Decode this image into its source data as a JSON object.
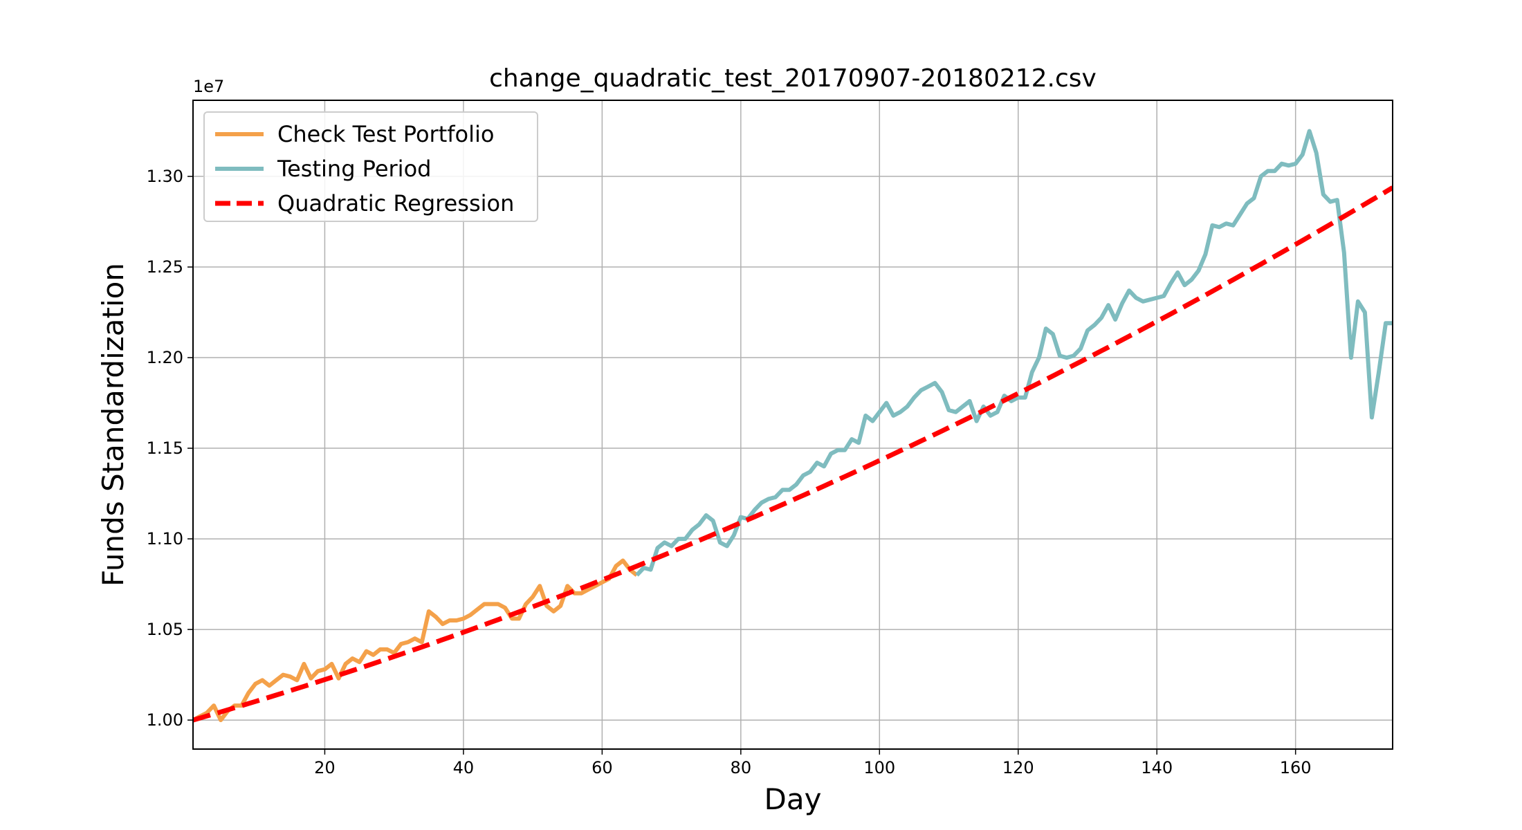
{
  "chart_data": {
    "type": "line",
    "title": "change_quadratic_test_20170907-20180212.csv",
    "xlabel": "Day",
    "ylabel": "Funds Standardization",
    "y_offset_label": "1e7",
    "xlim": [
      1,
      174
    ],
    "ylim": [
      0.984,
      1.342
    ],
    "xticks": [
      20,
      40,
      60,
      80,
      100,
      120,
      140,
      160
    ],
    "xtick_labels": [
      "20",
      "40",
      "60",
      "80",
      "100",
      "120",
      "140",
      "160"
    ],
    "yticks": [
      1.0,
      1.05,
      1.1,
      1.15,
      1.2,
      1.25,
      1.3
    ],
    "ytick_labels": [
      "1.00",
      "1.05",
      "1.10",
      "1.15",
      "1.20",
      "1.25",
      "1.30"
    ],
    "grid": true,
    "legend_position": "upper-left",
    "series": [
      {
        "name": "Check Test Portfolio",
        "color": "#f4a14a",
        "style": "solid",
        "x": [
          1,
          2,
          3,
          4,
          5,
          6,
          7,
          8,
          9,
          10,
          11,
          12,
          13,
          14,
          15,
          16,
          17,
          18,
          19,
          20,
          21,
          22,
          23,
          24,
          25,
          26,
          27,
          28,
          29,
          30,
          31,
          32,
          33,
          34,
          35,
          36,
          37,
          38,
          39,
          40,
          41,
          42,
          43,
          44,
          45,
          46,
          47,
          48,
          49,
          50,
          51,
          52,
          53,
          54,
          55,
          56,
          57,
          58,
          59,
          60,
          61,
          62,
          63,
          64,
          65
        ],
        "values": [
          1.0,
          1.002,
          1.004,
          1.008,
          1.0,
          1.005,
          1.008,
          1.008,
          1.015,
          1.02,
          1.022,
          1.019,
          1.022,
          1.025,
          1.024,
          1.022,
          1.031,
          1.023,
          1.027,
          1.028,
          1.031,
          1.023,
          1.031,
          1.034,
          1.032,
          1.038,
          1.036,
          1.039,
          1.039,
          1.037,
          1.042,
          1.043,
          1.045,
          1.043,
          1.06,
          1.057,
          1.053,
          1.055,
          1.055,
          1.056,
          1.058,
          1.061,
          1.064,
          1.064,
          1.064,
          1.062,
          1.056,
          1.056,
          1.064,
          1.068,
          1.074,
          1.063,
          1.06,
          1.063,
          1.074,
          1.07,
          1.07,
          1.072,
          1.074,
          1.076,
          1.078,
          1.085,
          1.088,
          1.083,
          1.08
        ]
      },
      {
        "name": "Testing Period",
        "color": "#7fbcbf",
        "style": "solid",
        "x": [
          65,
          66,
          67,
          68,
          69,
          70,
          71,
          72,
          73,
          74,
          75,
          76,
          77,
          78,
          79,
          80,
          81,
          82,
          83,
          84,
          85,
          86,
          87,
          88,
          89,
          90,
          91,
          92,
          93,
          94,
          95,
          96,
          97,
          98,
          99,
          100,
          101,
          102,
          103,
          104,
          105,
          106,
          107,
          108,
          109,
          110,
          111,
          112,
          113,
          114,
          115,
          116,
          117,
          118,
          119,
          120,
          121,
          122,
          123,
          124,
          125,
          126,
          127,
          128,
          129,
          130,
          131,
          132,
          133,
          134,
          135,
          136,
          137,
          138,
          139,
          140,
          141,
          142,
          143,
          144,
          145,
          146,
          147,
          148,
          149,
          150,
          151,
          152,
          153,
          154,
          155,
          156,
          157,
          158,
          159,
          160,
          161,
          162,
          163,
          164,
          165,
          166,
          167,
          168,
          169,
          170,
          171,
          172,
          173,
          174
        ],
        "values": [
          1.08,
          1.084,
          1.083,
          1.095,
          1.098,
          1.096,
          1.1,
          1.1,
          1.105,
          1.108,
          1.113,
          1.11,
          1.098,
          1.096,
          1.102,
          1.112,
          1.111,
          1.116,
          1.12,
          1.122,
          1.123,
          1.127,
          1.127,
          1.13,
          1.135,
          1.137,
          1.142,
          1.14,
          1.147,
          1.149,
          1.149,
          1.155,
          1.153,
          1.168,
          1.165,
          1.17,
          1.175,
          1.168,
          1.17,
          1.173,
          1.178,
          1.182,
          1.184,
          1.186,
          1.181,
          1.171,
          1.17,
          1.173,
          1.176,
          1.165,
          1.173,
          1.168,
          1.17,
          1.179,
          1.176,
          1.178,
          1.178,
          1.192,
          1.2,
          1.216,
          1.213,
          1.201,
          1.2,
          1.201,
          1.205,
          1.215,
          1.218,
          1.222,
          1.229,
          1.221,
          1.23,
          1.237,
          1.233,
          1.231,
          1.232,
          1.233,
          1.234,
          1.241,
          1.247,
          1.24,
          1.243,
          1.248,
          1.257,
          1.273,
          1.272,
          1.274,
          1.273,
          1.279,
          1.285,
          1.288,
          1.3,
          1.303,
          1.303,
          1.307,
          1.306,
          1.307,
          1.312,
          1.325,
          1.313,
          1.29,
          1.286,
          1.287,
          1.258,
          1.2,
          1.231,
          1.225,
          1.167,
          1.192,
          1.219,
          1.219
        ]
      },
      {
        "name": "Quadratic Regression",
        "color": "#ff0000",
        "style": "dashed",
        "formula": "y = 1.0 + 0.00111*(x-1) + 0.0000034*(x-1)^2",
        "x": [
          1,
          30,
          60,
          90,
          120,
          150,
          174
        ],
        "values": [
          1.0,
          1.035,
          1.0775,
          1.1258,
          1.1803,
          1.241,
          1.2937
        ]
      }
    ]
  }
}
